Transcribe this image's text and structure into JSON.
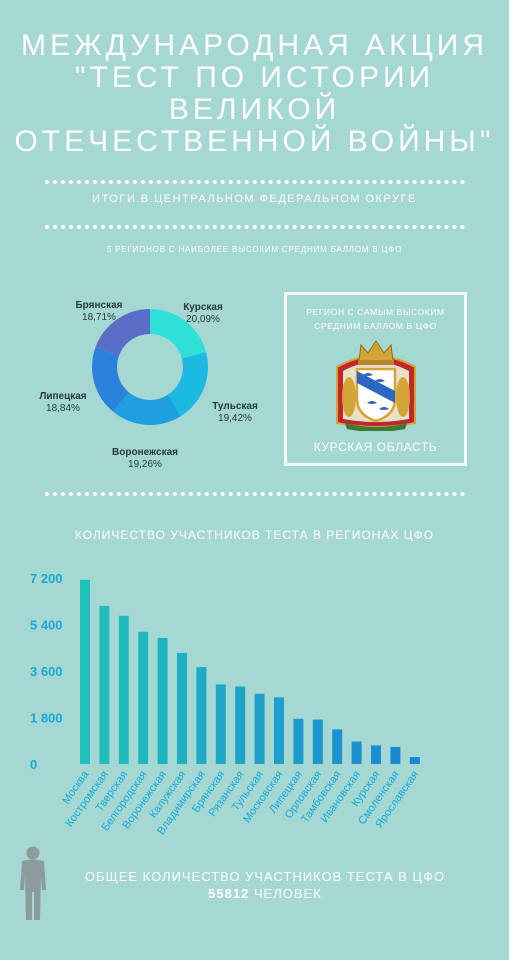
{
  "title": [
    "МЕЖДУНАРОДНАЯ АКЦИЯ",
    "\"ТЕСТ ПО ИСТОРИИ",
    "ВЕЛИКОЙ",
    "ОТЕЧЕСТВЕННОЙ ВОЙНЫ\""
  ],
  "subtitle": "ИТОГИ В ЦЕНТРАЛЬНОМ ФЕДЕРАЛЬНОМ ОКРУГЕ",
  "top5_title": "5 РЕГИОНОВ С НАИБОЛЕЕ ВЫСОКИМ СРЕДНИМ БАЛЛОМ В ЦФО",
  "best_region": {
    "title_lines": [
      "РЕГИОН С САМЫМ ВЫСОКИМ",
      "СРЕДНИМ БАЛЛОМ В ЦФО"
    ],
    "name": "КУРСКАЯ ОБЛАСТЬ",
    "emblem_icon": "kursk-coat-of-arms-icon"
  },
  "bar_title": "КОЛИЧЕСТВО УЧАСТНИКОВ ТЕСТА В РЕГИОНАХ ЦФО",
  "total": {
    "text": "ОБЩЕЕ КОЛИЧЕСТВО УЧАСТНИКОВ ТЕСТА В ЦФО",
    "number": "55812",
    "unit": "ЧЕЛОВЕК",
    "icon": "person-icon"
  },
  "chart_data": [
    {
      "type": "pie",
      "donut": true,
      "categories": [
        "Курская",
        "Тульская",
        "Воронежская",
        "Липецкая",
        "Брянская"
      ],
      "values": [
        20.09,
        19.42,
        19.26,
        18.84,
        18.71
      ],
      "value_labels": [
        "20,09%",
        "19,42%",
        "19,26%",
        "18,84%",
        "18,71%"
      ],
      "colors": [
        "#2ee0d8",
        "#1cb9e2",
        "#1f9fe0",
        "#2a82dc",
        "#5a6ec9"
      ]
    },
    {
      "type": "bar",
      "categories": [
        "Москва",
        "Костромская",
        "Тверская",
        "Белгородская",
        "Воронежская",
        "Калужская",
        "Владимирская",
        "Брянская",
        "Рязанская",
        "Тульская",
        "Московская",
        "Липецкая",
        "Орловская",
        "Тамбовская",
        "Ивановская",
        "Курская",
        "Смоленская",
        "Ярославская"
      ],
      "values": [
        7130,
        6120,
        5740,
        5120,
        4880,
        4300,
        3750,
        3080,
        3000,
        2720,
        2580,
        1750,
        1720,
        1340,
        870,
        720,
        660,
        270
      ],
      "yticks": [
        0,
        1800,
        3600,
        5400,
        7200
      ],
      "ytick_labels": [
        "0",
        "1 800",
        "3 600",
        "5 400",
        "7 200"
      ],
      "ylim": [
        0,
        7200
      ],
      "grid": false,
      "color_start": "#1fc2bb",
      "color_end": "#1b84d6"
    }
  ]
}
